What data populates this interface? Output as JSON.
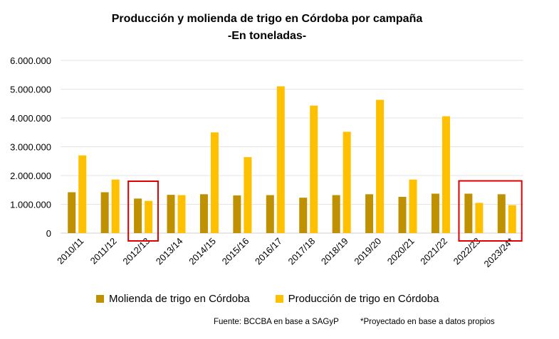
{
  "chart_data": {
    "type": "bar",
    "title": "Producción y molienda de trigo en Córdoba por campaña",
    "subtitle": "-En toneladas-",
    "categories": [
      "2010/11",
      "2011/12",
      "2012/13",
      "2013/14",
      "2014/15",
      "2015/16",
      "2016/17",
      "2017/18",
      "2018/19",
      "2019/20",
      "2020/21",
      "2021/22",
      "2022/23",
      "2023/24*"
    ],
    "series": [
      {
        "name": "Molienda de trigo en Córdoba",
        "color": "#bf9000",
        "values": [
          1420000,
          1420000,
          1200000,
          1330000,
          1350000,
          1310000,
          1320000,
          1230000,
          1320000,
          1350000,
          1260000,
          1370000,
          1370000,
          1350000
        ]
      },
      {
        "name": "Producción de trigo en Córdoba",
        "color": "#ffc000",
        "values": [
          2700000,
          1860000,
          1120000,
          1320000,
          3500000,
          2640000,
          5100000,
          4430000,
          3520000,
          4630000,
          1860000,
          4060000,
          1050000,
          970000
        ]
      }
    ],
    "ylim": [
      0,
      6000000
    ],
    "yticks": [
      0,
      1000000,
      2000000,
      3000000,
      4000000,
      5000000,
      6000000
    ],
    "ytick_labels": [
      "0",
      "1.000.000",
      "2.000.000",
      "3.000.000",
      "4.000.000",
      "5.000.000",
      "6.000.000"
    ],
    "grid": true,
    "legend_position": "bottom",
    "highlight_color": "#e00000",
    "highlights": [
      {
        "categories": [
          "2012/13"
        ]
      },
      {
        "categories": [
          "2022/23",
          "2023/24*"
        ]
      }
    ]
  },
  "footer": {
    "source": "Fuente: BCCBA en base a SAGyP",
    "note": "*Proyectado en base a datos propios"
  }
}
